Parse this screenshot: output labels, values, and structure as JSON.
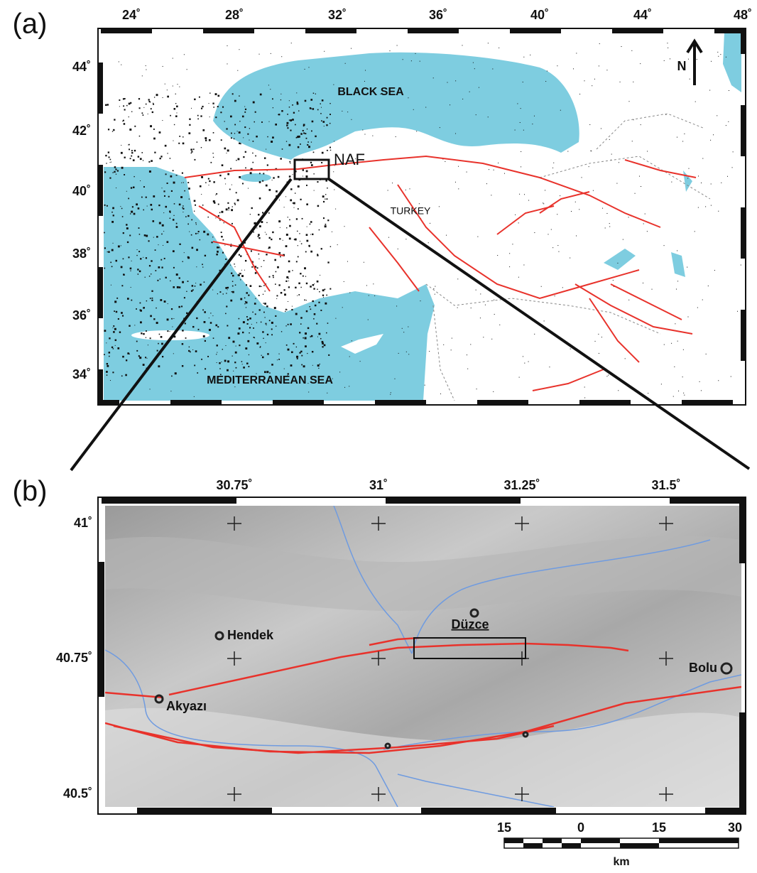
{
  "panel_a": {
    "label": "(a)",
    "lon_labels": [
      "24˚",
      "28˚",
      "32˚",
      "36˚",
      "40˚",
      "44˚",
      "48˚"
    ],
    "lat_labels": [
      "44˚",
      "42˚",
      "40˚",
      "38˚",
      "36˚",
      "34˚"
    ],
    "places": {
      "black_sea": "BLACK SEA",
      "mediterranean": "MEDITERRANEAN SEA",
      "turkey": "TURKEY",
      "fault": "NAF",
      "north": "N"
    }
  },
  "panel_b": {
    "label": "(b)",
    "lon_labels": [
      "30.75˚",
      "31˚",
      "31.25˚",
      "31.5˚"
    ],
    "lat_labels": [
      "41˚",
      "40.75˚",
      "40.5˚"
    ],
    "towns": [
      "Hendek",
      "Düzce",
      "Akyazı",
      "Bolu"
    ],
    "scale": {
      "ticks": [
        "15",
        "0",
        "15",
        "30"
      ],
      "unit": "km"
    }
  }
}
